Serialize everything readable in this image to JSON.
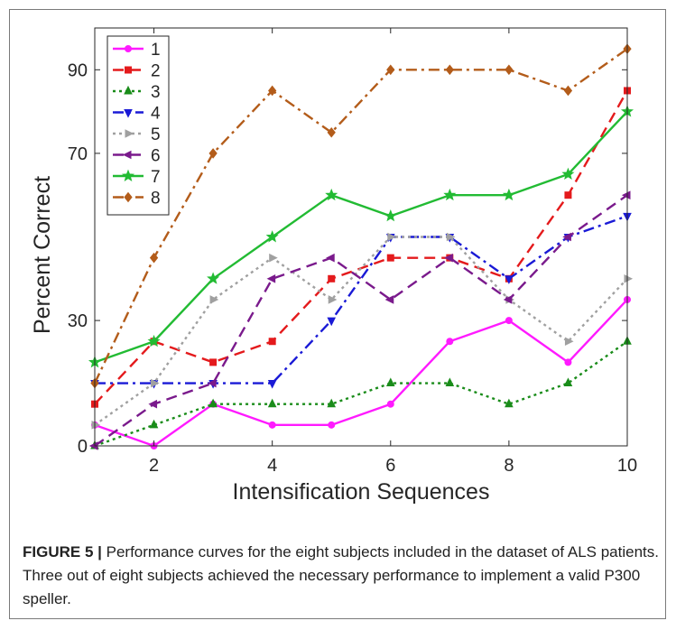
{
  "chart_data": {
    "type": "line",
    "xlabel": "Intensification Sequences",
    "ylabel": "Percent Correct",
    "xlim": [
      1,
      10
    ],
    "ylim": [
      0,
      100
    ],
    "xticks": [
      2,
      4,
      6,
      8,
      10
    ],
    "yticks": [
      0,
      30,
      70,
      90
    ],
    "grid": false,
    "legend_position": "top-left",
    "x": [
      1,
      2,
      3,
      4,
      5,
      6,
      7,
      8,
      9,
      10
    ],
    "series": [
      {
        "name": "1",
        "color": "#ff1aff",
        "dash": "solid",
        "marker": "circle",
        "values": [
          5,
          0,
          10,
          5,
          5,
          10,
          25,
          30,
          20,
          35
        ]
      },
      {
        "name": "2",
        "color": "#e41a1c",
        "dash": "dashed",
        "marker": "square",
        "values": [
          10,
          25,
          20,
          25,
          40,
          45,
          45,
          40,
          60,
          85
        ]
      },
      {
        "name": "3",
        "color": "#1a8c1a",
        "dash": "dotted",
        "marker": "triangle-up",
        "values": [
          0,
          5,
          10,
          10,
          10,
          15,
          15,
          10,
          15,
          25
        ]
      },
      {
        "name": "4",
        "color": "#1a1ad6",
        "dash": "dashdot",
        "marker": "triangle-down",
        "values": [
          15,
          15,
          15,
          15,
          30,
          50,
          50,
          40,
          50,
          55
        ]
      },
      {
        "name": "5",
        "color": "#a0a0a0",
        "dash": "dotted",
        "marker": "triangle-right",
        "values": [
          5,
          15,
          35,
          45,
          35,
          50,
          50,
          35,
          25,
          40
        ]
      },
      {
        "name": "6",
        "color": "#7a1a8c",
        "dash": "dashed",
        "marker": "triangle-left",
        "values": [
          0,
          10,
          15,
          40,
          45,
          35,
          45,
          35,
          50,
          60
        ]
      },
      {
        "name": "7",
        "color": "#22bb33",
        "dash": "solid",
        "marker": "star",
        "values": [
          20,
          25,
          40,
          50,
          60,
          55,
          60,
          60,
          65,
          80
        ]
      },
      {
        "name": "8",
        "color": "#b35c1a",
        "dash": "dashdot",
        "marker": "diamond",
        "values": [
          15,
          45,
          70,
          85,
          75,
          90,
          90,
          90,
          85,
          95
        ]
      }
    ]
  },
  "caption": {
    "label": "FIGURE 5 |",
    "text": " Performance curves for the eight subjects included in the dataset of ALS patients. Three out of eight subjects achieved the necessary performance to implement a valid P300 speller."
  }
}
